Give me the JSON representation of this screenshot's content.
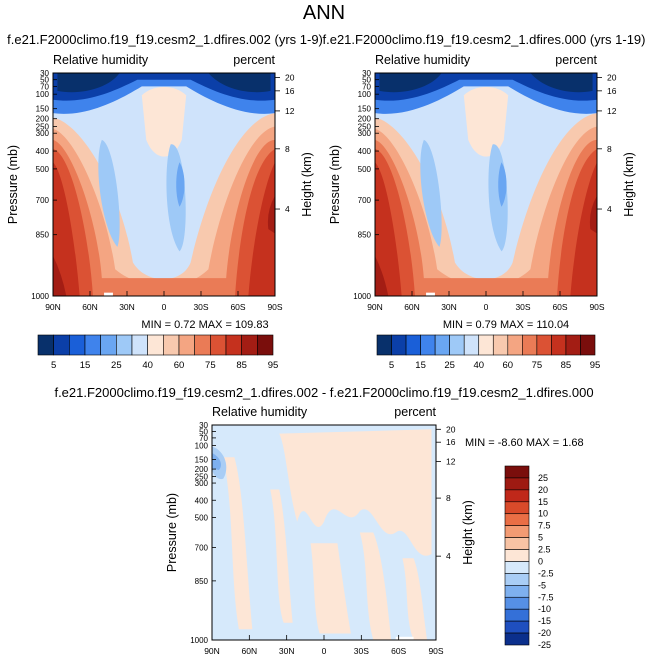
{
  "page_title": "ANN",
  "chart_data": [
    {
      "type": "heatmap",
      "title": "f.e21.F2000climo.f19_f19.cesm2_1.dfires.002 (yrs 1-9)",
      "subtitle_left": "Relative humidity",
      "subtitle_right": "percent",
      "ylabel": "Pressure (mb)",
      "ylabel_right": "Height (km)",
      "x_ticks": [
        "90N",
        "60N",
        "30N",
        "0",
        "30S",
        "60S",
        "90S"
      ],
      "y_ticks": [
        "30",
        "50",
        "70",
        "100",
        "150",
        "200",
        "250",
        "300",
        "400",
        "500",
        "700",
        "850",
        "1000"
      ],
      "y_ticks_right": [
        "20",
        "16",
        "12",
        "8",
        "4"
      ],
      "stats": "MIN =  0.72   MAX = 109.83",
      "colorbar_labels": [
        "5",
        "15",
        "25",
        "40",
        "60",
        "75",
        "85",
        "95"
      ]
    },
    {
      "type": "heatmap",
      "title": "f.e21.F2000climo.f19_f19.cesm2_1.dfires.000 (yrs 1-19)",
      "subtitle_left": "Relative humidity",
      "subtitle_right": "percent",
      "ylabel": "Pressure (mb)",
      "ylabel_right": "Height (km)",
      "x_ticks": [
        "90N",
        "60N",
        "30N",
        "0",
        "30S",
        "60S",
        "90S"
      ],
      "y_ticks": [
        "30",
        "50",
        "70",
        "100",
        "150",
        "200",
        "250",
        "300",
        "400",
        "500",
        "700",
        "850",
        "1000"
      ],
      "y_ticks_right": [
        "20",
        "16",
        "12",
        "8",
        "4"
      ],
      "stats": "MIN =  0.79   MAX = 110.04",
      "colorbar_labels": [
        "5",
        "15",
        "25",
        "40",
        "60",
        "75",
        "85",
        "95"
      ]
    },
    {
      "type": "heatmap",
      "title": "f.e21.F2000climo.f19_f19.cesm2_1.dfires.002 - f.e21.F2000climo.f19_f19.cesm2_1.dfires.000",
      "subtitle_left": "Relative humidity",
      "subtitle_right": "percent",
      "ylabel": "Pressure (mb)",
      "ylabel_right": "Height (km)",
      "x_ticks": [
        "90N",
        "60N",
        "30N",
        "0",
        "30S",
        "60S",
        "90S"
      ],
      "y_ticks": [
        "30",
        "50",
        "70",
        "100",
        "150",
        "200",
        "250",
        "300",
        "400",
        "500",
        "700",
        "850",
        "1000"
      ],
      "y_ticks_right": [
        "20",
        "16",
        "12",
        "8",
        "4"
      ],
      "stats": "MIN = -8.60   MAX =  1.68",
      "colorbar_labels": [
        "25",
        "20",
        "15",
        "10",
        "7.5",
        "5",
        "2.5",
        "0",
        "-2.5",
        "-5",
        "-7.5",
        "-10",
        "-15",
        "-20",
        "-25"
      ]
    }
  ],
  "colors": {
    "rh_scale": [
      "#08306b",
      "#0b3fa8",
      "#1a5fd8",
      "#3f83ec",
      "#6aa6f2",
      "#9ec9f7",
      "#cfe3fb",
      "#fde6d6",
      "#f8c9ae",
      "#f4a582",
      "#ea7b56",
      "#db5234",
      "#c5311e",
      "#a31d14",
      "#7a0e0c"
    ],
    "diff_scale": [
      "#7a0e0c",
      "#9e1a12",
      "#c0281a",
      "#d94a2a",
      "#ea6e45",
      "#f39b73",
      "#f8c3a4",
      "#fde6d6",
      "#d6e9fb",
      "#a9cdf5",
      "#7eb0ef",
      "#5690e6",
      "#3470d8",
      "#1f4fbf",
      "#0b2f8c"
    ]
  }
}
